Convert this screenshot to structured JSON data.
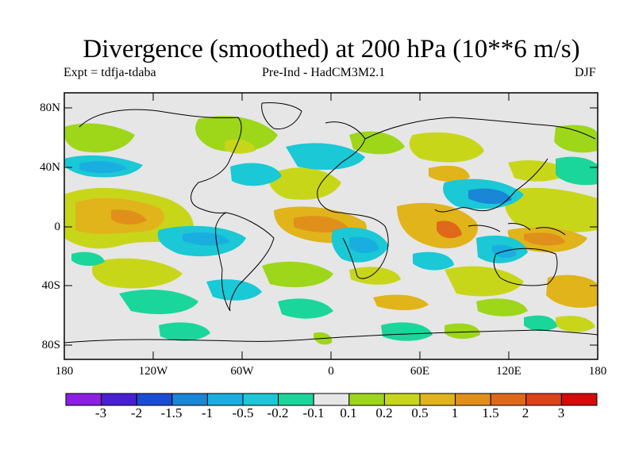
{
  "title": "Divergence (smoothed) at 200 hPa (10**6 m/s)",
  "subtitle_left": "Expt = tdfja-tdaba",
  "subtitle_center": "Pre-Ind - HadCM3M2.1",
  "subtitle_right": "DJF",
  "lat_labels": [
    "80N",
    "40N",
    "0",
    "40S",
    "80S"
  ],
  "lon_labels": [
    "180",
    "120W",
    "60W",
    "0",
    "60E",
    "120E",
    "180"
  ],
  "colorbar": {
    "levels": [
      "-3",
      "-2",
      "-1.5",
      "-1",
      "-0.5",
      "-0.2",
      "-0.1",
      "0.1",
      "0.2",
      "0.5",
      "1",
      "1.5",
      "2",
      "3"
    ],
    "colors": [
      "#8c1ee6",
      "#4a1ed6",
      "#1a4cd6",
      "#1a86d6",
      "#1aaee0",
      "#1ac8d6",
      "#1ad69a",
      "#e6e6e6",
      "#9ed61a",
      "#c8d61a",
      "#e0b41a",
      "#e0901a",
      "#e0681a",
      "#e0401a",
      "#d60a0a"
    ]
  }
}
